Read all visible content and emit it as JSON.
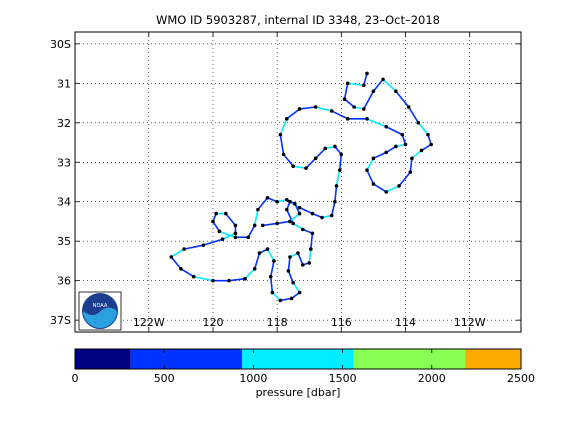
{
  "chart_data": {
    "type": "scatter",
    "title": "WMO ID 5903287, internal ID 3348, 23–Oct–2018",
    "x_tick_labels": [
      "122W",
      "120",
      "118",
      "116",
      "114",
      "112W"
    ],
    "y_tick_labels": [
      "30S",
      "31",
      "32",
      "33",
      "34",
      "35",
      "36",
      "37S"
    ],
    "xlim": [
      -124.3,
      -110.4
    ],
    "ylim": [
      -37.3,
      -29.7
    ],
    "x_ticks": [
      -122,
      -120,
      -118,
      -116,
      -114,
      -112
    ],
    "y_ticks": [
      -30,
      -31,
      -32,
      -33,
      -34,
      -35,
      -36,
      -37
    ],
    "grid": true,
    "logo": "NOAA",
    "colorbar": {
      "label": "pressure [dbar]",
      "ticks": [
        0,
        500,
        1000,
        1500,
        2000,
        2500
      ],
      "range": [
        0,
        2500
      ],
      "bands": [
        {
          "from": 0,
          "to": 312,
          "color": "#000080"
        },
        {
          "from": 312,
          "to": 937,
          "color": "#0033ff"
        },
        {
          "from": 937,
          "to": 1562,
          "color": "#00eeff"
        },
        {
          "from": 1562,
          "to": 2187,
          "color": "#88ff55"
        },
        {
          "from": 2187,
          "to": 2500,
          "color": "#ffaa00"
        }
      ]
    },
    "series": [
      {
        "points": [
          [
            -115.2,
            -30.75
          ],
          [
            -115.3,
            -31.05
          ],
          [
            -115.8,
            -31.0
          ],
          [
            -115.9,
            -31.4
          ],
          [
            -115.6,
            -31.6
          ],
          [
            -115.3,
            -31.65
          ],
          [
            -115.0,
            -31.2
          ],
          [
            -114.7,
            -30.9
          ],
          [
            -114.3,
            -31.2
          ],
          [
            -113.9,
            -31.6
          ],
          [
            -113.6,
            -32.0
          ],
          [
            -113.3,
            -32.3
          ],
          [
            -113.2,
            -32.55
          ],
          [
            -113.5,
            -32.7
          ],
          [
            -113.8,
            -32.9
          ],
          [
            -113.85,
            -33.25
          ],
          [
            -114.2,
            -33.6
          ],
          [
            -114.6,
            -33.75
          ],
          [
            -115.0,
            -33.55
          ],
          [
            -115.2,
            -33.2
          ],
          [
            -115.0,
            -32.9
          ],
          [
            -114.6,
            -32.75
          ],
          [
            -114.3,
            -32.6
          ],
          [
            -114.0,
            -32.55
          ],
          [
            -114.1,
            -32.3
          ],
          [
            -114.6,
            -32.1
          ],
          [
            -115.2,
            -31.9
          ],
          [
            -115.8,
            -31.9
          ],
          [
            -116.3,
            -31.7
          ],
          [
            -116.8,
            -31.6
          ],
          [
            -117.3,
            -31.65
          ],
          [
            -117.7,
            -31.9
          ],
          [
            -117.9,
            -32.3
          ],
          [
            -117.8,
            -32.8
          ],
          [
            -117.5,
            -33.1
          ],
          [
            -117.1,
            -33.15
          ],
          [
            -116.8,
            -32.9
          ],
          [
            -116.5,
            -32.65
          ],
          [
            -116.2,
            -32.6
          ],
          [
            -116.0,
            -32.8
          ],
          [
            -116.05,
            -33.2
          ],
          [
            -116.15,
            -33.6
          ],
          [
            -116.2,
            -34.0
          ],
          [
            -116.3,
            -34.35
          ],
          [
            -116.6,
            -34.4
          ],
          [
            -116.9,
            -34.3
          ],
          [
            -117.3,
            -34.15
          ],
          [
            -117.6,
            -34.0
          ],
          [
            -117.7,
            -34.2
          ],
          [
            -117.5,
            -34.55
          ],
          [
            -117.2,
            -34.7
          ],
          [
            -116.9,
            -34.8
          ],
          [
            -116.95,
            -35.2
          ],
          [
            -117.0,
            -35.55
          ],
          [
            -117.2,
            -35.6
          ],
          [
            -117.35,
            -35.3
          ],
          [
            -117.6,
            -35.4
          ],
          [
            -117.65,
            -35.75
          ],
          [
            -117.5,
            -36.05
          ],
          [
            -117.3,
            -36.3
          ],
          [
            -117.55,
            -36.45
          ],
          [
            -117.9,
            -36.5
          ],
          [
            -118.15,
            -36.3
          ],
          [
            -118.2,
            -35.9
          ],
          [
            -118.1,
            -35.5
          ],
          [
            -118.3,
            -35.2
          ],
          [
            -118.55,
            -35.3
          ],
          [
            -118.7,
            -35.7
          ],
          [
            -119.0,
            -35.95
          ],
          [
            -119.5,
            -36.0
          ],
          [
            -120.0,
            -36.0
          ],
          [
            -120.6,
            -35.9
          ],
          [
            -121.0,
            -35.7
          ],
          [
            -121.3,
            -35.4
          ],
          [
            -120.9,
            -35.2
          ],
          [
            -120.3,
            -35.1
          ],
          [
            -119.7,
            -34.95
          ],
          [
            -119.3,
            -34.8
          ],
          [
            -119.3,
            -34.6
          ],
          [
            -119.6,
            -34.3
          ],
          [
            -119.9,
            -34.3
          ],
          [
            -120.0,
            -34.5
          ],
          [
            -119.8,
            -34.75
          ],
          [
            -119.3,
            -34.9
          ],
          [
            -118.9,
            -34.9
          ],
          [
            -118.7,
            -34.6
          ],
          [
            -118.6,
            -34.2
          ],
          [
            -118.3,
            -33.9
          ],
          [
            -118.0,
            -34.0
          ],
          [
            -117.7,
            -33.95
          ],
          [
            -117.45,
            -34.05
          ],
          [
            -117.3,
            -34.3
          ],
          [
            -117.6,
            -34.5
          ],
          [
            -118.0,
            -34.55
          ],
          [
            -118.45,
            -34.6
          ]
        ]
      }
    ]
  }
}
